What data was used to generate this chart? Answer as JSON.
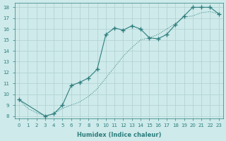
{
  "xlabel": "Humidex (Indice chaleur)",
  "bg_color": "#ceeaea",
  "line_color": "#2e7d7d",
  "grid_color": "#afd0d0",
  "xlim": [
    -0.5,
    23.5
  ],
  "ylim": [
    7.8,
    18.4
  ],
  "xtick_labels": [
    "0",
    "1",
    "2",
    "3",
    "4",
    "5",
    "6",
    "7",
    "8",
    "9",
    "10",
    "11",
    "12",
    "13",
    "14",
    "15",
    "16",
    "17",
    "18",
    "19",
    "20",
    "21",
    "22",
    "23"
  ],
  "ytick_labels": [
    "8",
    "9",
    "10",
    "11",
    "12",
    "13",
    "14",
    "15",
    "16",
    "17",
    "18"
  ],
  "line1_x": [
    0,
    1,
    2,
    3,
    4,
    5,
    6,
    7,
    8,
    9,
    10,
    11,
    12,
    13,
    14,
    15,
    16,
    17,
    18,
    19,
    20,
    21,
    22,
    23
  ],
  "line1_y": [
    9.5,
    8.7,
    8.3,
    8.0,
    8.2,
    8.7,
    9.0,
    9.3,
    9.8,
    10.5,
    11.5,
    12.5,
    13.5,
    14.3,
    15.0,
    15.2,
    15.5,
    16.0,
    16.5,
    17.1,
    17.2,
    17.5,
    17.6,
    17.4
  ],
  "line2_x": [
    0,
    3,
    4,
    5,
    6,
    7,
    8,
    9,
    10,
    11,
    12,
    13,
    14,
    15,
    16,
    17,
    18,
    19,
    20,
    21,
    22,
    23
  ],
  "line2_y": [
    9.5,
    8.0,
    8.2,
    9.0,
    10.8,
    11.1,
    11.5,
    12.3,
    15.5,
    16.1,
    15.9,
    16.3,
    16.0,
    15.2,
    15.1,
    15.5,
    16.4,
    17.2,
    18.0,
    18.0,
    18.0,
    17.4
  ]
}
